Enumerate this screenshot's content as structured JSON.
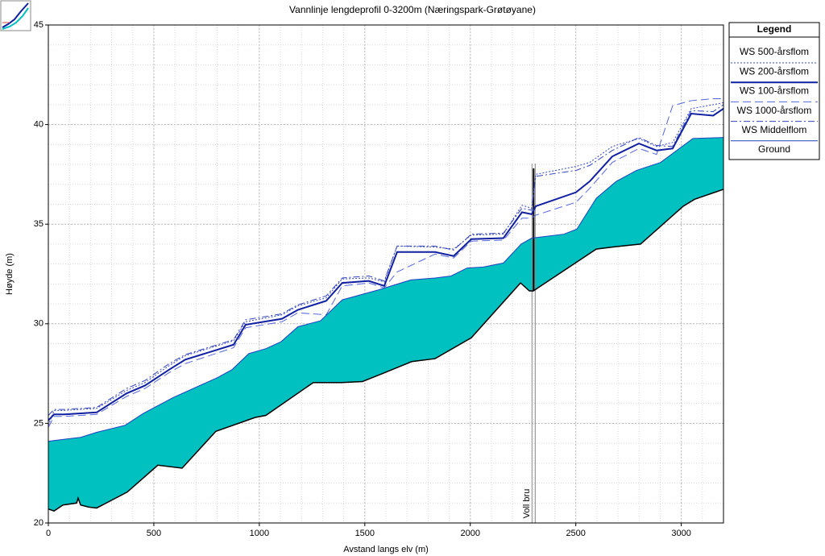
{
  "chart_data": {
    "type": "line",
    "title": "Vannlinje lengdeprofil 0-3200m (Næringspark-Grøtøyane)",
    "x_label": "Avstand langs elv (m)",
    "y_label": "Høyde (m)",
    "xlim": [
      0,
      3200
    ],
    "xticks": [
      0,
      500,
      1000,
      1500,
      2000,
      2500,
      3000
    ],
    "ylim": [
      20,
      45
    ],
    "yticks": [
      20,
      25,
      30,
      35,
      40,
      45
    ],
    "grid": true,
    "legend_title": "Legend",
    "legend": "right",
    "fill_color": "#00c0c0",
    "series": [
      {
        "name": "WS  500-årsflom",
        "color": "#3344cc",
        "dash": "dot",
        "x": [
          0,
          27,
          76,
          153,
          229,
          370,
          458,
          573,
          649,
          878,
          935,
          1107,
          1183,
          1317,
          1393,
          1519,
          1592,
          1653,
          1833,
          1921,
          2005,
          2157,
          2245,
          2291,
          2310,
          2501,
          2566,
          2673,
          2799,
          2883,
          2959,
          3047,
          3151,
          3200
        ],
        "values": [
          24.9,
          25.65,
          25.65,
          25.7,
          25.75,
          26.65,
          27.05,
          27.9,
          28.4,
          29.15,
          30.1,
          30.45,
          30.9,
          31.3,
          32.25,
          32.3,
          32.1,
          33.9,
          33.85,
          33.75,
          34.45,
          34.5,
          35.95,
          35.8,
          37.5,
          37.9,
          38.1,
          38.9,
          39.3,
          38.9,
          39.1,
          40.8,
          41.0,
          41.1
        ]
      },
      {
        "name": "WS  200-årsflom",
        "color": "#1020a0",
        "dash": "solid",
        "x": [
          0,
          27,
          76,
          153,
          229,
          370,
          458,
          573,
          649,
          878,
          935,
          1107,
          1183,
          1317,
          1393,
          1519,
          1592,
          1653,
          1833,
          1921,
          2005,
          2157,
          2245,
          2291,
          2310,
          2501,
          2566,
          2673,
          2799,
          2883,
          2959,
          3047,
          3151,
          3200
        ],
        "values": [
          25.15,
          25.45,
          25.45,
          25.5,
          25.55,
          26.5,
          26.9,
          27.7,
          28.2,
          28.95,
          29.95,
          30.25,
          30.7,
          31.15,
          32.05,
          32.15,
          31.9,
          33.6,
          33.6,
          33.4,
          34.25,
          34.3,
          35.6,
          35.5,
          35.9,
          36.6,
          37.15,
          38.4,
          39.05,
          38.7,
          38.8,
          40.55,
          40.45,
          40.8
        ]
      },
      {
        "name": "WS  100-årsflom",
        "color": "#5566dd",
        "dash": "dash",
        "x": [
          0,
          27,
          76,
          153,
          229,
          370,
          458,
          573,
          649,
          878,
          935,
          1107,
          1183,
          1317,
          1393,
          1519,
          1592,
          1653,
          1833,
          1921,
          2005,
          2157,
          2245,
          2291,
          2310,
          2501,
          2566,
          2673,
          2799,
          2883,
          2959,
          3047,
          3151,
          3200
        ],
        "values": [
          24.8,
          25.35,
          25.35,
          25.4,
          25.45,
          26.35,
          26.75,
          27.55,
          28.0,
          28.8,
          29.8,
          30.1,
          30.55,
          30.45,
          31.9,
          32.05,
          31.8,
          32.6,
          33.5,
          33.3,
          34.15,
          34.2,
          35.3,
          35.3,
          35.45,
          36.1,
          36.8,
          38.1,
          38.8,
          38.5,
          40.95,
          41.2,
          41.3,
          41.3
        ]
      },
      {
        "name": "WS  1000-årsflom",
        "color": "#3344bb",
        "dash": "dashdot",
        "x": [
          0,
          27,
          76,
          153,
          229,
          370,
          458,
          573,
          649,
          878,
          935,
          1107,
          1183,
          1317,
          1393,
          1519,
          1592,
          1653,
          1833,
          1921,
          2005,
          2157,
          2245,
          2291,
          2310,
          2501,
          2566,
          2673,
          2799,
          2883,
          2959,
          3047,
          3151,
          3200
        ],
        "values": [
          25.4,
          25.7,
          25.7,
          25.75,
          25.8,
          26.75,
          27.15,
          28.0,
          28.45,
          29.2,
          30.2,
          30.5,
          30.95,
          31.4,
          32.3,
          32.4,
          32.15,
          33.9,
          33.9,
          33.7,
          34.5,
          34.55,
          35.8,
          35.7,
          37.4,
          37.7,
          37.95,
          38.7,
          39.35,
          38.95,
          38.9,
          40.7,
          40.65,
          41.0
        ]
      },
      {
        "name": "WS  Middelflom",
        "color": "#2040c0",
        "dash": "solid",
        "x": [
          0,
          76,
          153,
          229,
          363,
          450,
          592,
          802,
          871,
          950,
          1031,
          1103,
          1183,
          1290,
          1393,
          1565,
          1718,
          1833,
          1909,
          1985,
          2062,
          2157,
          2241,
          2291,
          2444,
          2505,
          2597,
          2692,
          2788,
          2902,
          3055,
          3200
        ],
        "values": [
          24.1,
          24.2,
          24.3,
          24.55,
          24.9,
          25.5,
          26.3,
          27.3,
          27.7,
          28.5,
          28.75,
          29.1,
          29.85,
          30.15,
          31.2,
          31.7,
          32.2,
          32.3,
          32.4,
          32.8,
          32.85,
          33.05,
          34.0,
          34.3,
          34.5,
          34.75,
          36.3,
          37.15,
          37.7,
          38.1,
          39.3,
          39.35
        ]
      },
      {
        "name": "Ground",
        "color": "#000000",
        "dash": "solid",
        "x": [
          0,
          27,
          69,
          134,
          141,
          153,
          191,
          229,
          374,
          519,
          634,
          794,
          981,
          1031,
          1256,
          1390,
          1489,
          1584,
          1722,
          1833,
          2005,
          2238,
          2280,
          2299,
          2597,
          2673,
          2807,
          3009,
          3063,
          3200
        ],
        "values": [
          20.7,
          20.6,
          20.9,
          21.0,
          21.25,
          20.9,
          20.8,
          20.75,
          21.55,
          22.9,
          22.75,
          24.6,
          25.3,
          25.4,
          27.05,
          27.05,
          27.1,
          27.5,
          28.1,
          28.25,
          29.3,
          32.05,
          31.65,
          31.65,
          33.75,
          33.85,
          34.0,
          35.9,
          36.25,
          36.75
        ]
      }
    ],
    "bridge": {
      "label": "Voll bru",
      "x": 2300,
      "bottom": 31.65,
      "top": 37.8
    }
  }
}
